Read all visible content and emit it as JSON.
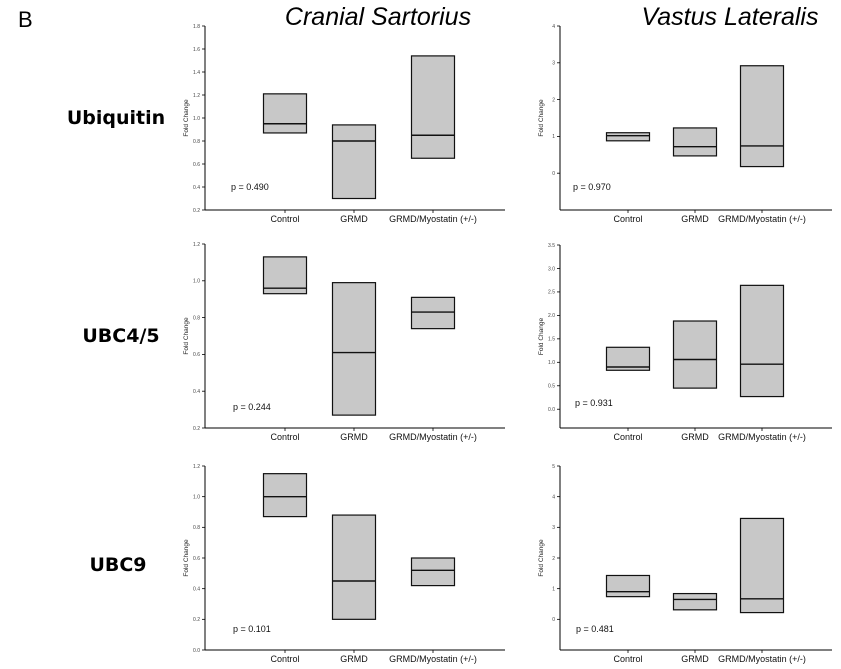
{
  "figure": {
    "panel_letter": "B",
    "columns": [
      "Cranial Sartorius",
      "Vastus Lateralis"
    ],
    "rows": [
      "Ubiquitin",
      "UBC4/5",
      "UBC9"
    ]
  },
  "colors": {
    "box_fill": "#c8c8c8",
    "box_stroke": "#111111"
  },
  "chart_data": [
    {
      "type": "box",
      "title": "Ubiquitin — Cranial Sartorius",
      "ylabel": "Fold Change",
      "ylim": [
        0.2,
        1.8
      ],
      "yticks": [
        "0.2",
        "0.4",
        "0.6",
        "0.8",
        "1.0",
        "1.2",
        "1.4",
        "1.6",
        "1.8"
      ],
      "categories": [
        "Control",
        "GRMD",
        "GRMD/Myostatin (+/-)"
      ],
      "boxes": [
        {
          "low": 0.87,
          "high": 1.21,
          "median": 0.95
        },
        {
          "low": 0.3,
          "high": 0.94,
          "median": 0.8
        },
        {
          "low": 0.65,
          "high": 1.54,
          "median": 0.85
        }
      ],
      "annotation": "p = 0.490"
    },
    {
      "type": "box",
      "title": "Ubiquitin — Vastus Lateralis",
      "ylabel": "Fold Change",
      "ylim": [
        -1,
        4
      ],
      "yticks": [
        "0",
        "1",
        "2",
        "3",
        "4"
      ],
      "categories": [
        "Control",
        "GRMD",
        "GRMD/Myostatin (+/-)"
      ],
      "boxes": [
        {
          "low": 0.88,
          "high": 1.1,
          "median": 1.02
        },
        {
          "low": 0.47,
          "high": 1.23,
          "median": 0.72
        },
        {
          "low": 0.18,
          "high": 2.92,
          "median": 0.74
        }
      ],
      "annotation": "p = 0.970"
    },
    {
      "type": "box",
      "title": "UBC4/5 — Cranial Sartorius",
      "ylabel": "Fold Change",
      "ylim": [
        0.2,
        1.2
      ],
      "yticks": [
        "0.2",
        "0.4",
        "0.6",
        "0.8",
        "1.0",
        "1.2"
      ],
      "categories": [
        "Control",
        "GRMD",
        "GRMD/Myostatin (+/-)"
      ],
      "boxes": [
        {
          "low": 0.93,
          "high": 1.13,
          "median": 0.96
        },
        {
          "low": 0.27,
          "high": 0.99,
          "median": 0.61
        },
        {
          "low": 0.74,
          "high": 0.91,
          "median": 0.83
        }
      ],
      "annotation": "p = 0.244"
    },
    {
      "type": "box",
      "title": "UBC4/5 — Vastus Lateralis",
      "ylabel": "Fold Change",
      "ylim": [
        -0.4,
        3.5
      ],
      "yticks": [
        "0.0",
        "0.5",
        "1.0",
        "1.5",
        "2.0",
        "2.5",
        "3.0",
        "3.5"
      ],
      "categories": [
        "Control",
        "GRMD",
        "GRMD/Myostatin (+/-)"
      ],
      "boxes": [
        {
          "low": 0.83,
          "high": 1.32,
          "median": 0.9
        },
        {
          "low": 0.45,
          "high": 1.88,
          "median": 1.06
        },
        {
          "low": 0.27,
          "high": 2.64,
          "median": 0.96
        }
      ],
      "annotation": "p = 0.931"
    },
    {
      "type": "box",
      "title": "UBC9 — Cranial Sartorius",
      "ylabel": "Fold Change",
      "ylim": [
        0.0,
        1.2
      ],
      "yticks": [
        "0.0",
        "0.2",
        "0.4",
        "0.6",
        "0.8",
        "1.0",
        "1.2"
      ],
      "categories": [
        "Control",
        "GRMD",
        "GRMD/Myostatin (+/-)"
      ],
      "boxes": [
        {
          "low": 0.87,
          "high": 1.15,
          "median": 1.0
        },
        {
          "low": 0.2,
          "high": 0.88,
          "median": 0.45
        },
        {
          "low": 0.42,
          "high": 0.6,
          "median": 0.52
        }
      ],
      "annotation": "p = 0.101"
    },
    {
      "type": "box",
      "title": "UBC9 — Vastus Lateralis",
      "ylabel": "Fold Change",
      "ylim": [
        -1,
        5
      ],
      "yticks": [
        "0",
        "1",
        "2",
        "3",
        "4",
        "5"
      ],
      "categories": [
        "Control",
        "GRMD",
        "GRMD/Myostatin (+/-)"
      ],
      "boxes": [
        {
          "low": 0.74,
          "high": 1.43,
          "median": 0.9
        },
        {
          "low": 0.31,
          "high": 0.84,
          "median": 0.65
        },
        {
          "low": 0.22,
          "high": 3.29,
          "median": 0.67
        }
      ],
      "annotation": "p = 0.481"
    }
  ]
}
